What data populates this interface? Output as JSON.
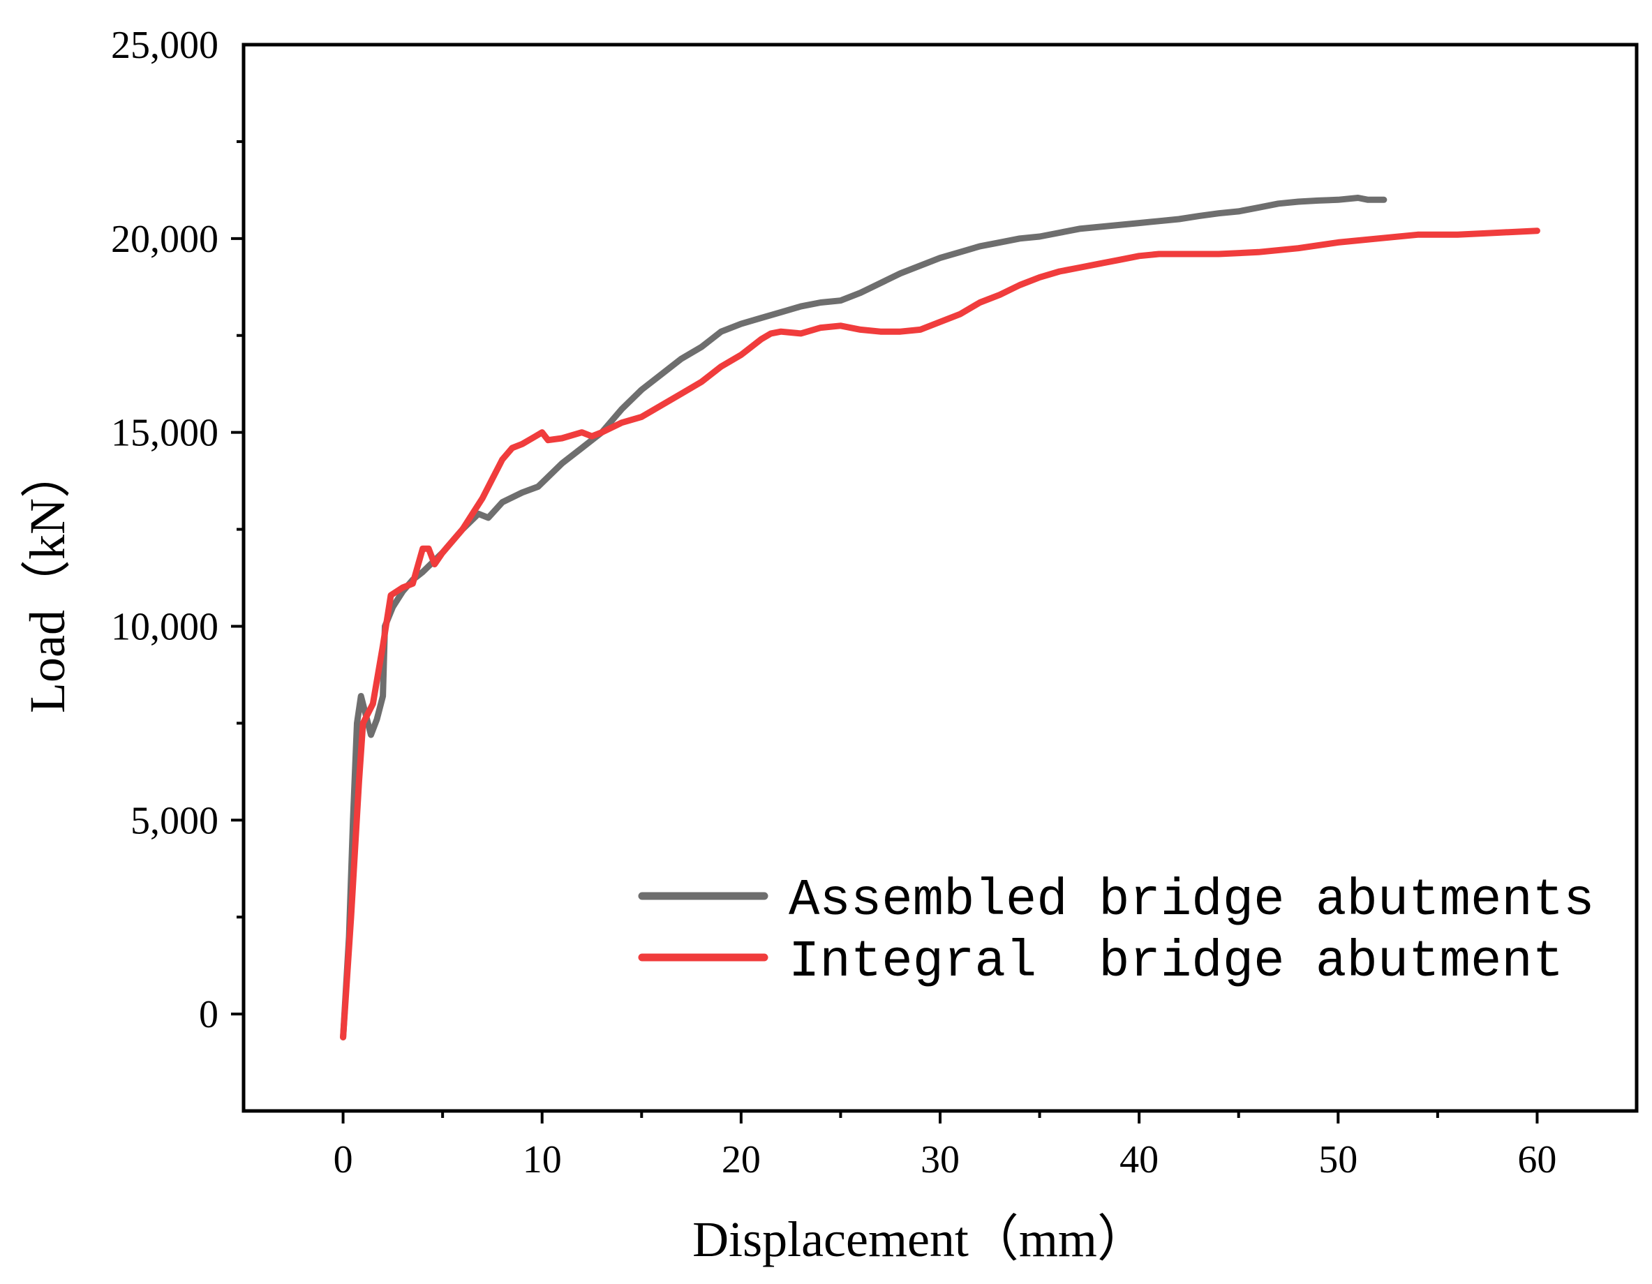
{
  "chart_data": {
    "type": "line",
    "title": "",
    "xlabel": "Displacement（mm）",
    "ylabel": "Load（kN）",
    "xlim": [
      -5,
      65
    ],
    "ylim": [
      -2500,
      25000
    ],
    "xticks": [
      0,
      10,
      20,
      30,
      40,
      50,
      60
    ],
    "xtick_labels": [
      "0",
      "10",
      "20",
      "30",
      "40",
      "50",
      "60"
    ],
    "yticks": [
      0,
      5000,
      10000,
      15000,
      20000,
      25000
    ],
    "ytick_labels": [
      "0",
      "5,000",
      "10,000",
      "15,000",
      "20,000",
      "25,000"
    ],
    "grid": false,
    "legend_position": "bottom-right",
    "series": [
      {
        "name": "Assembled bridge abutments",
        "color": "#6e6e6e",
        "points": [
          [
            0,
            -600
          ],
          [
            0.3,
            2000
          ],
          [
            0.5,
            5000
          ],
          [
            0.7,
            7500
          ],
          [
            0.9,
            8200
          ],
          [
            1.1,
            7800
          ],
          [
            1.4,
            7200
          ],
          [
            1.7,
            7600
          ],
          [
            2.0,
            8200
          ],
          [
            2.1,
            10000
          ],
          [
            2.5,
            10500
          ],
          [
            3.0,
            10900
          ],
          [
            3.5,
            11200
          ],
          [
            4.0,
            11400
          ],
          [
            5.0,
            11900
          ],
          [
            6.0,
            12500
          ],
          [
            6.8,
            12900
          ],
          [
            7.3,
            12800
          ],
          [
            8.0,
            13200
          ],
          [
            9.0,
            13450
          ],
          [
            9.8,
            13600
          ],
          [
            11.0,
            14200
          ],
          [
            12.0,
            14600
          ],
          [
            13.0,
            15000
          ],
          [
            14.0,
            15600
          ],
          [
            15.0,
            16100
          ],
          [
            16.0,
            16500
          ],
          [
            17.0,
            16900
          ],
          [
            18.0,
            17200
          ],
          [
            19.0,
            17600
          ],
          [
            20.0,
            17800
          ],
          [
            21.0,
            17950
          ],
          [
            22.0,
            18100
          ],
          [
            23.0,
            18250
          ],
          [
            24.0,
            18350
          ],
          [
            25.0,
            18400
          ],
          [
            26.0,
            18600
          ],
          [
            27.0,
            18850
          ],
          [
            28.0,
            19100
          ],
          [
            29.0,
            19300
          ],
          [
            30.0,
            19500
          ],
          [
            31.0,
            19650
          ],
          [
            32.0,
            19800
          ],
          [
            33.0,
            19900
          ],
          [
            34.0,
            20000
          ],
          [
            35.0,
            20050
          ],
          [
            36.0,
            20150
          ],
          [
            37.0,
            20250
          ],
          [
            38.0,
            20300
          ],
          [
            39.0,
            20350
          ],
          [
            40.0,
            20400
          ],
          [
            41.0,
            20450
          ],
          [
            42.0,
            20500
          ],
          [
            43.0,
            20580
          ],
          [
            44.0,
            20650
          ],
          [
            45.0,
            20700
          ],
          [
            46.0,
            20800
          ],
          [
            47.0,
            20900
          ],
          [
            48.0,
            20950
          ],
          [
            49.0,
            20980
          ],
          [
            50.0,
            21000
          ],
          [
            51.0,
            21050
          ],
          [
            51.5,
            21000
          ],
          [
            52.3,
            21000
          ]
        ]
      },
      {
        "name": "Integral  bridge abutment",
        "color": "#f03c3c",
        "points": [
          [
            0,
            -600
          ],
          [
            0.4,
            2500
          ],
          [
            0.8,
            6000
          ],
          [
            1.0,
            7500
          ],
          [
            1.5,
            8000
          ],
          [
            2.0,
            9500
          ],
          [
            2.4,
            10800
          ],
          [
            3.0,
            11000
          ],
          [
            3.5,
            11100
          ],
          [
            4.0,
            12000
          ],
          [
            4.3,
            12000
          ],
          [
            4.6,
            11600
          ],
          [
            5.0,
            11900
          ],
          [
            6.0,
            12500
          ],
          [
            6.5,
            12900
          ],
          [
            7.0,
            13300
          ],
          [
            7.5,
            13800
          ],
          [
            8.0,
            14300
          ],
          [
            8.5,
            14600
          ],
          [
            9.0,
            14700
          ],
          [
            9.5,
            14850
          ],
          [
            10.0,
            15000
          ],
          [
            10.3,
            14800
          ],
          [
            11.0,
            14850
          ],
          [
            12.0,
            15000
          ],
          [
            12.5,
            14900
          ],
          [
            13.0,
            15000
          ],
          [
            14.0,
            15250
          ],
          [
            15.0,
            15400
          ],
          [
            16.0,
            15700
          ],
          [
            17.0,
            16000
          ],
          [
            18.0,
            16300
          ],
          [
            19.0,
            16700
          ],
          [
            20.0,
            17000
          ],
          [
            21.0,
            17400
          ],
          [
            21.5,
            17550
          ],
          [
            22.0,
            17600
          ],
          [
            23.0,
            17550
          ],
          [
            24.0,
            17700
          ],
          [
            25.0,
            17750
          ],
          [
            26.0,
            17650
          ],
          [
            27.0,
            17600
          ],
          [
            28.0,
            17600
          ],
          [
            29.0,
            17650
          ],
          [
            30.0,
            17850
          ],
          [
            31.0,
            18050
          ],
          [
            32.0,
            18350
          ],
          [
            33.0,
            18550
          ],
          [
            34.0,
            18800
          ],
          [
            35.0,
            19000
          ],
          [
            36.0,
            19150
          ],
          [
            37.0,
            19250
          ],
          [
            38.0,
            19350
          ],
          [
            39.0,
            19450
          ],
          [
            40.0,
            19550
          ],
          [
            41.0,
            19600
          ],
          [
            42.0,
            19600
          ],
          [
            44.0,
            19600
          ],
          [
            46.0,
            19650
          ],
          [
            48.0,
            19750
          ],
          [
            50.0,
            19900
          ],
          [
            52.0,
            20000
          ],
          [
            54.0,
            20100
          ],
          [
            56.0,
            20100
          ],
          [
            58.0,
            20150
          ],
          [
            60.0,
            20200
          ]
        ]
      }
    ]
  }
}
